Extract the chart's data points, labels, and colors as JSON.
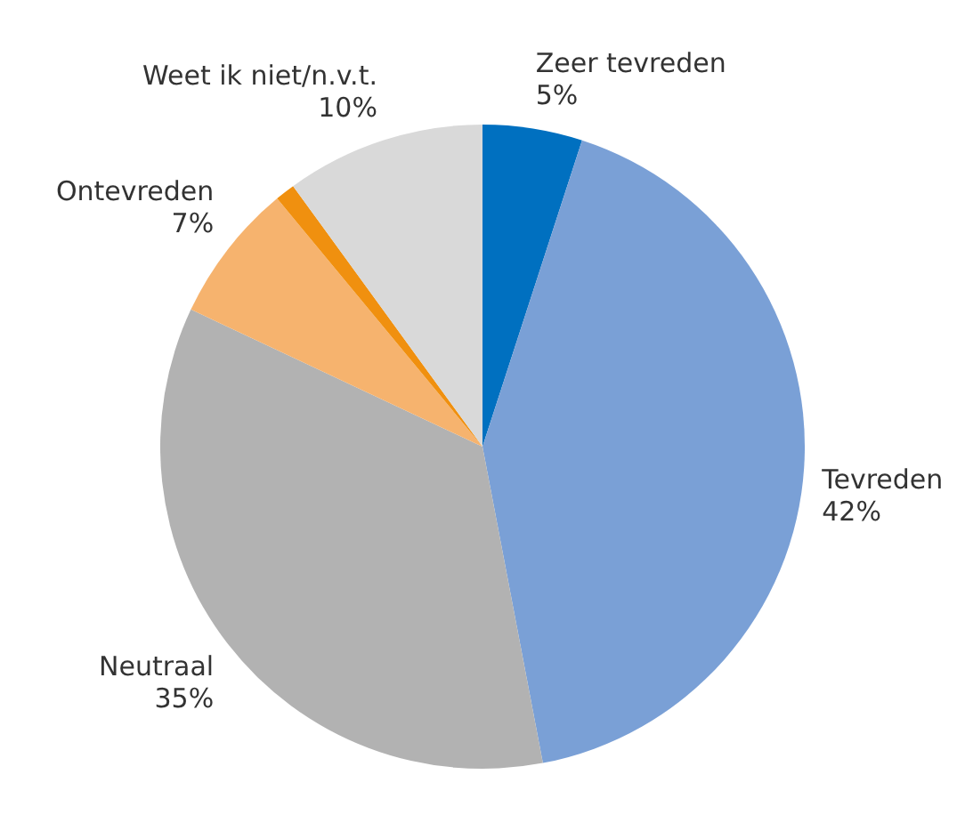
{
  "chart_data": {
    "type": "pie",
    "categories": [
      "Zeer tevreden",
      "Tevreden",
      "Neutraal",
      "Ontevreden",
      null,
      "Weet ik niet/n.v.t."
    ],
    "values": [
      5,
      42,
      35,
      7,
      1,
      10
    ],
    "value_labels": [
      "5%",
      "42%",
      "35%",
      "7%",
      null,
      "10%"
    ],
    "colors": [
      "#0070c0",
      "#7aa0d6",
      "#b2b2b2",
      "#f6b36e",
      "#f0900f",
      "#d9d9d9"
    ],
    "legend": false
  }
}
